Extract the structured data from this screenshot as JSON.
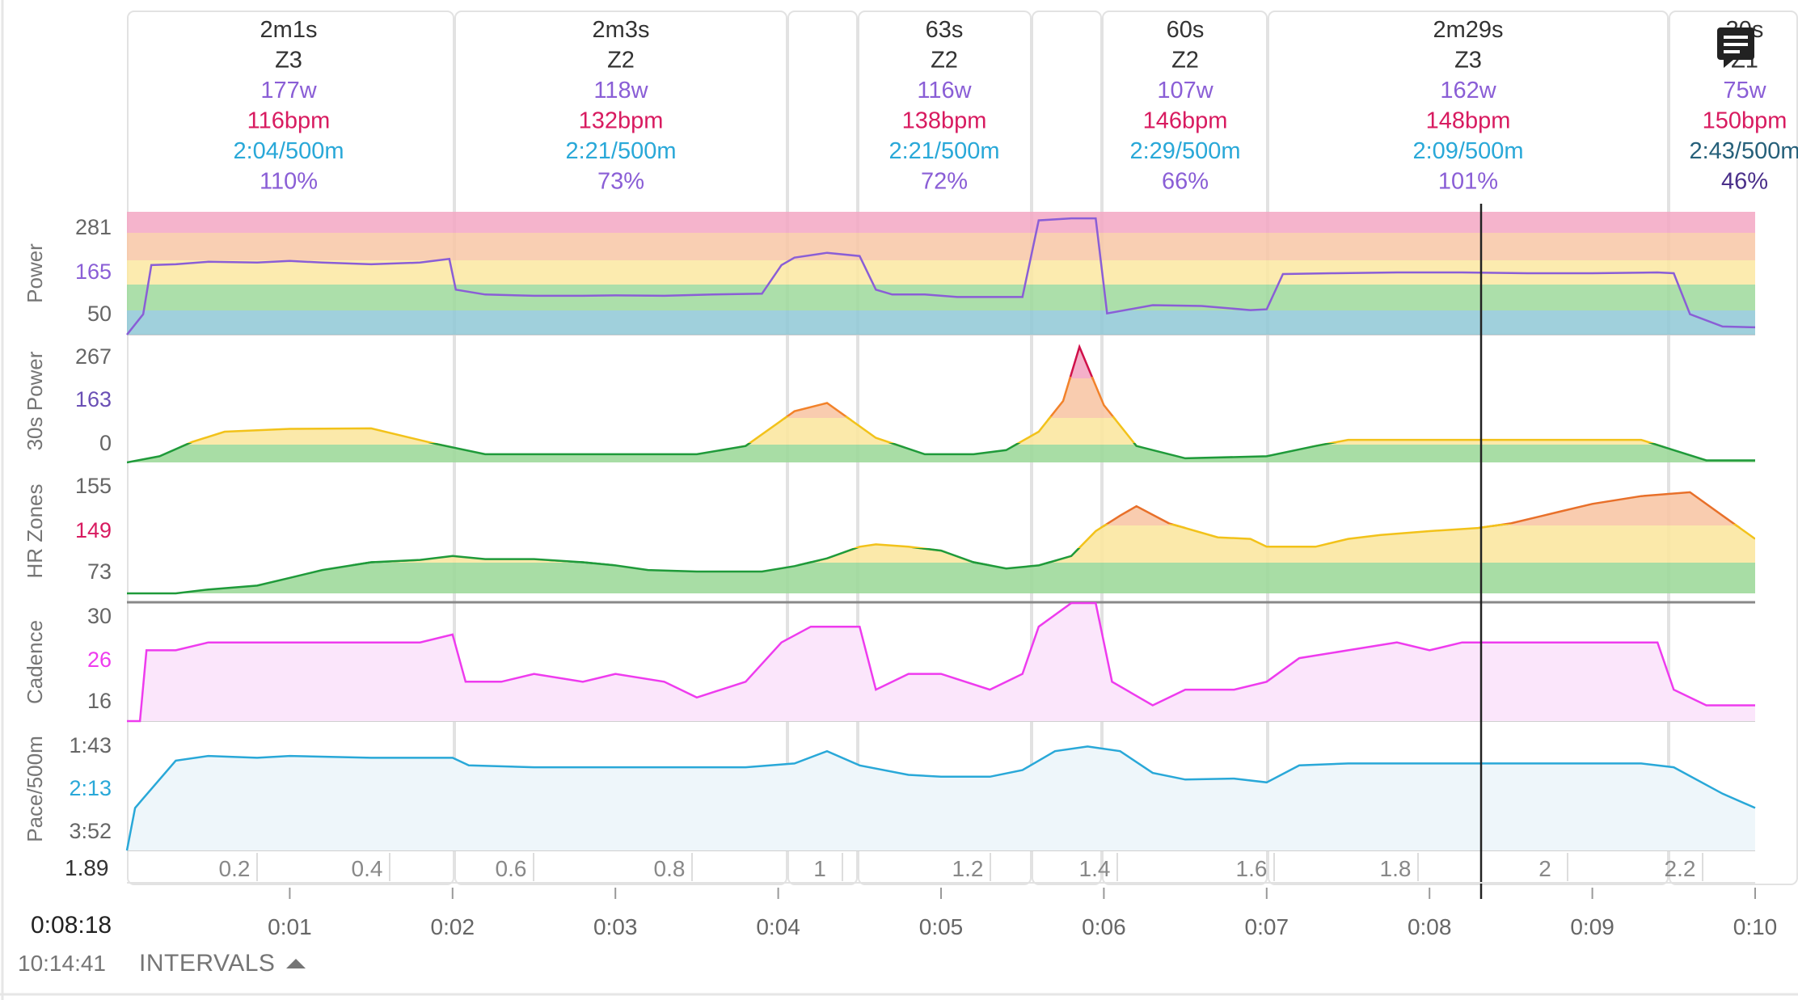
{
  "colors": {
    "power": "#8a5ed6",
    "hr": "#d81b60",
    "pace": "#29a8d8",
    "cadence": "#ee3bee",
    "zone1": "#8fc8d6",
    "zone2": "#9ed99b",
    "zone3": "#fbe7a1",
    "zone4": "#f8c7a6",
    "zone5": "#f3a7c3"
  },
  "intervals": [
    {
      "duration": "2m1s",
      "zone": "Z3",
      "power": "177w",
      "hr": "116bpm",
      "pace": "2:04/500m",
      "pct": "110%"
    },
    {
      "duration": "2m3s",
      "zone": "Z2",
      "power": "118w",
      "hr": "132bpm",
      "pace": "2:21/500m",
      "pct": "73%"
    },
    {
      "duration": "63s",
      "zone": "Z2",
      "power": "116w",
      "hr": "138bpm",
      "pace": "2:21/500m",
      "pct": "72%"
    },
    {
      "duration": "60s",
      "zone": "Z2",
      "power": "107w",
      "hr": "146bpm",
      "pace": "2:29/500m",
      "pct": "66%"
    },
    {
      "duration": "2m29s",
      "zone": "Z3",
      "power": "162w",
      "hr": "148bpm",
      "pace": "2:09/500m",
      "pct": "101%"
    },
    {
      "duration": "30s",
      "zone": "Z1",
      "power": "75w",
      "hr": "150bpm",
      "pace": "2:43/500m",
      "pct": "46%"
    }
  ],
  "panels": [
    {
      "label": "Power",
      "ticks": [
        "281",
        "165",
        "50"
      ]
    },
    {
      "label": "30s Power",
      "ticks": [
        "267",
        "163",
        "0"
      ]
    },
    {
      "label": "HR Zones",
      "ticks": [
        "155",
        "149",
        "73"
      ]
    },
    {
      "label": "Cadence",
      "ticks": [
        "30",
        "26",
        "16"
      ]
    },
    {
      "label": "Pace/500m",
      "ticks": [
        "1:43",
        "2:13",
        "3:52"
      ]
    }
  ],
  "distance_axis": {
    "start_label": "1.89",
    "ticks": [
      "0.2",
      "0.4",
      "0.6",
      "0.8",
      "1",
      "1.2",
      "1.4",
      "1.6",
      "1.8",
      "2",
      "2.2"
    ]
  },
  "time_axis": {
    "ticks": [
      "0:01",
      "0:02",
      "0:03",
      "0:04",
      "0:05",
      "0:06",
      "0:07",
      "0:08",
      "0:09",
      "0:10"
    ]
  },
  "cursor": {
    "time": "0:08:18",
    "clock": "10:14:41"
  },
  "intervals_toggle": "INTERVALS",
  "chart_data": [
    {
      "type": "area",
      "title": "Power",
      "ylabel": "Power",
      "x_unit": "min",
      "ylim": [
        0,
        300
      ],
      "x": [
        0.0,
        0.1,
        0.15,
        0.3,
        0.5,
        0.8,
        1.0,
        1.2,
        1.5,
        1.8,
        1.98,
        2.02,
        2.2,
        2.5,
        2.8,
        3.0,
        3.3,
        3.6,
        3.9,
        4.02,
        4.1,
        4.3,
        4.5,
        4.6,
        4.7,
        4.9,
        5.1,
        5.3,
        5.4,
        5.5,
        5.6,
        5.8,
        5.95,
        6.02,
        6.3,
        6.6,
        6.9,
        7.0,
        7.1,
        7.4,
        7.8,
        8.2,
        8.6,
        9.0,
        9.4,
        9.5,
        9.6,
        9.8,
        10.0
      ],
      "series": [
        {
          "values": [
            0,
            50,
            170,
            172,
            178,
            176,
            180,
            176,
            172,
            176,
            185,
            110,
            98,
            95,
            95,
            96,
            95,
            98,
            100,
            170,
            188,
            200,
            192,
            110,
            98,
            98,
            92,
            92,
            92,
            92,
            279,
            284,
            284,
            52,
            72,
            70,
            60,
            62,
            148,
            150,
            152,
            152,
            150,
            150,
            152,
            150,
            50,
            20,
            18
          ]
        }
      ]
    },
    {
      "type": "area",
      "title": "30s Power",
      "ylabel": "30s Power",
      "x_unit": "min",
      "ylim": [
        0,
        300
      ],
      "x": [
        0.0,
        0.2,
        0.4,
        0.6,
        1.0,
        1.5,
        1.9,
        2.2,
        2.5,
        3.0,
        3.5,
        3.8,
        4.1,
        4.3,
        4.6,
        4.9,
        5.2,
        5.4,
        5.6,
        5.75,
        5.85,
        6.0,
        6.2,
        6.5,
        7.0,
        7.3,
        7.5,
        8.0,
        8.5,
        9.0,
        9.3,
        9.5,
        9.7,
        10.0
      ],
      "series": [
        {
          "values": [
            0,
            15,
            50,
            75,
            82,
            83,
            45,
            20,
            20,
            20,
            20,
            40,
            125,
            145,
            60,
            20,
            20,
            30,
            75,
            150,
            282,
            140,
            40,
            10,
            15,
            40,
            55,
            55,
            55,
            55,
            55,
            30,
            5,
            5
          ]
        }
      ]
    },
    {
      "type": "area",
      "title": "HR Zones",
      "ylabel": "HR Zones",
      "x_unit": "min",
      "ylim": [
        0,
        160
      ],
      "x": [
        0.0,
        0.3,
        0.5,
        0.8,
        1.0,
        1.2,
        1.5,
        1.8,
        2.0,
        2.2,
        2.5,
        2.8,
        3.0,
        3.2,
        3.5,
        3.7,
        3.9,
        4.1,
        4.3,
        4.5,
        4.6,
        4.8,
        5.0,
        5.2,
        5.4,
        5.6,
        5.8,
        5.95,
        6.1,
        6.2,
        6.4,
        6.7,
        6.9,
        7.0,
        7.3,
        7.5,
        7.7,
        8.0,
        8.3,
        8.5,
        8.8,
        9.0,
        9.3,
        9.6,
        9.8,
        10.0
      ],
      "series": [
        {
          "values": [
            0,
            0,
            5,
            10,
            20,
            30,
            40,
            43,
            48,
            44,
            44,
            40,
            36,
            30,
            28,
            28,
            28,
            35,
            45,
            60,
            63,
            60,
            55,
            40,
            32,
            36,
            48,
            80,
            100,
            112,
            90,
            72,
            70,
            60,
            60,
            70,
            75,
            80,
            84,
            90,
            105,
            115,
            125,
            130,
            100,
            70
          ]
        }
      ]
    },
    {
      "type": "area",
      "title": "Cadence",
      "ylabel": "Cadence",
      "x_unit": "min",
      "ylim": [
        15,
        30
      ],
      "x": [
        0.0,
        0.08,
        0.12,
        0.3,
        0.5,
        0.8,
        1.0,
        1.5,
        1.8,
        2.0,
        2.08,
        2.3,
        2.5,
        2.8,
        3.0,
        3.3,
        3.5,
        3.8,
        4.02,
        4.2,
        4.5,
        4.6,
        4.8,
        5.0,
        5.3,
        5.5,
        5.6,
        5.8,
        5.95,
        6.05,
        6.3,
        6.5,
        6.8,
        7.0,
        7.2,
        7.5,
        7.8,
        8.0,
        8.2,
        8.4,
        8.6,
        9.0,
        9.4,
        9.5,
        9.7,
        10.0
      ],
      "series": [
        {
          "values": [
            15,
            15,
            24,
            24,
            25,
            25,
            25,
            25,
            25,
            26,
            20,
            20,
            21,
            20,
            21,
            20,
            18,
            20,
            25,
            27,
            27,
            19,
            21,
            21,
            19,
            21,
            27,
            30,
            30,
            20,
            17,
            19,
            19,
            20,
            23,
            24,
            25,
            24,
            25,
            25,
            25,
            25,
            25,
            19,
            17,
            17
          ]
        }
      ]
    },
    {
      "type": "area",
      "title": "Pace/500m",
      "ylabel": "Pace/500m",
      "x_unit": "min",
      "ylim": [
        0,
        130
      ],
      "x": [
        0.0,
        0.05,
        0.1,
        0.3,
        0.5,
        0.8,
        1.0,
        1.5,
        2.0,
        2.1,
        2.5,
        3.0,
        3.5,
        3.8,
        4.1,
        4.3,
        4.5,
        4.8,
        5.0,
        5.3,
        5.5,
        5.7,
        5.9,
        6.1,
        6.3,
        6.5,
        6.8,
        7.0,
        7.2,
        7.5,
        8.0,
        8.5,
        9.0,
        9.3,
        9.5,
        9.8,
        10.0
      ],
      "series": [
        {
          "values": [
            0,
            45,
            55,
            95,
            100,
            98,
            100,
            98,
            98,
            90,
            88,
            88,
            88,
            88,
            92,
            105,
            90,
            80,
            78,
            78,
            85,
            105,
            110,
            105,
            82,
            75,
            76,
            72,
            90,
            92,
            92,
            92,
            92,
            92,
            88,
            60,
            45
          ]
        }
      ]
    }
  ]
}
